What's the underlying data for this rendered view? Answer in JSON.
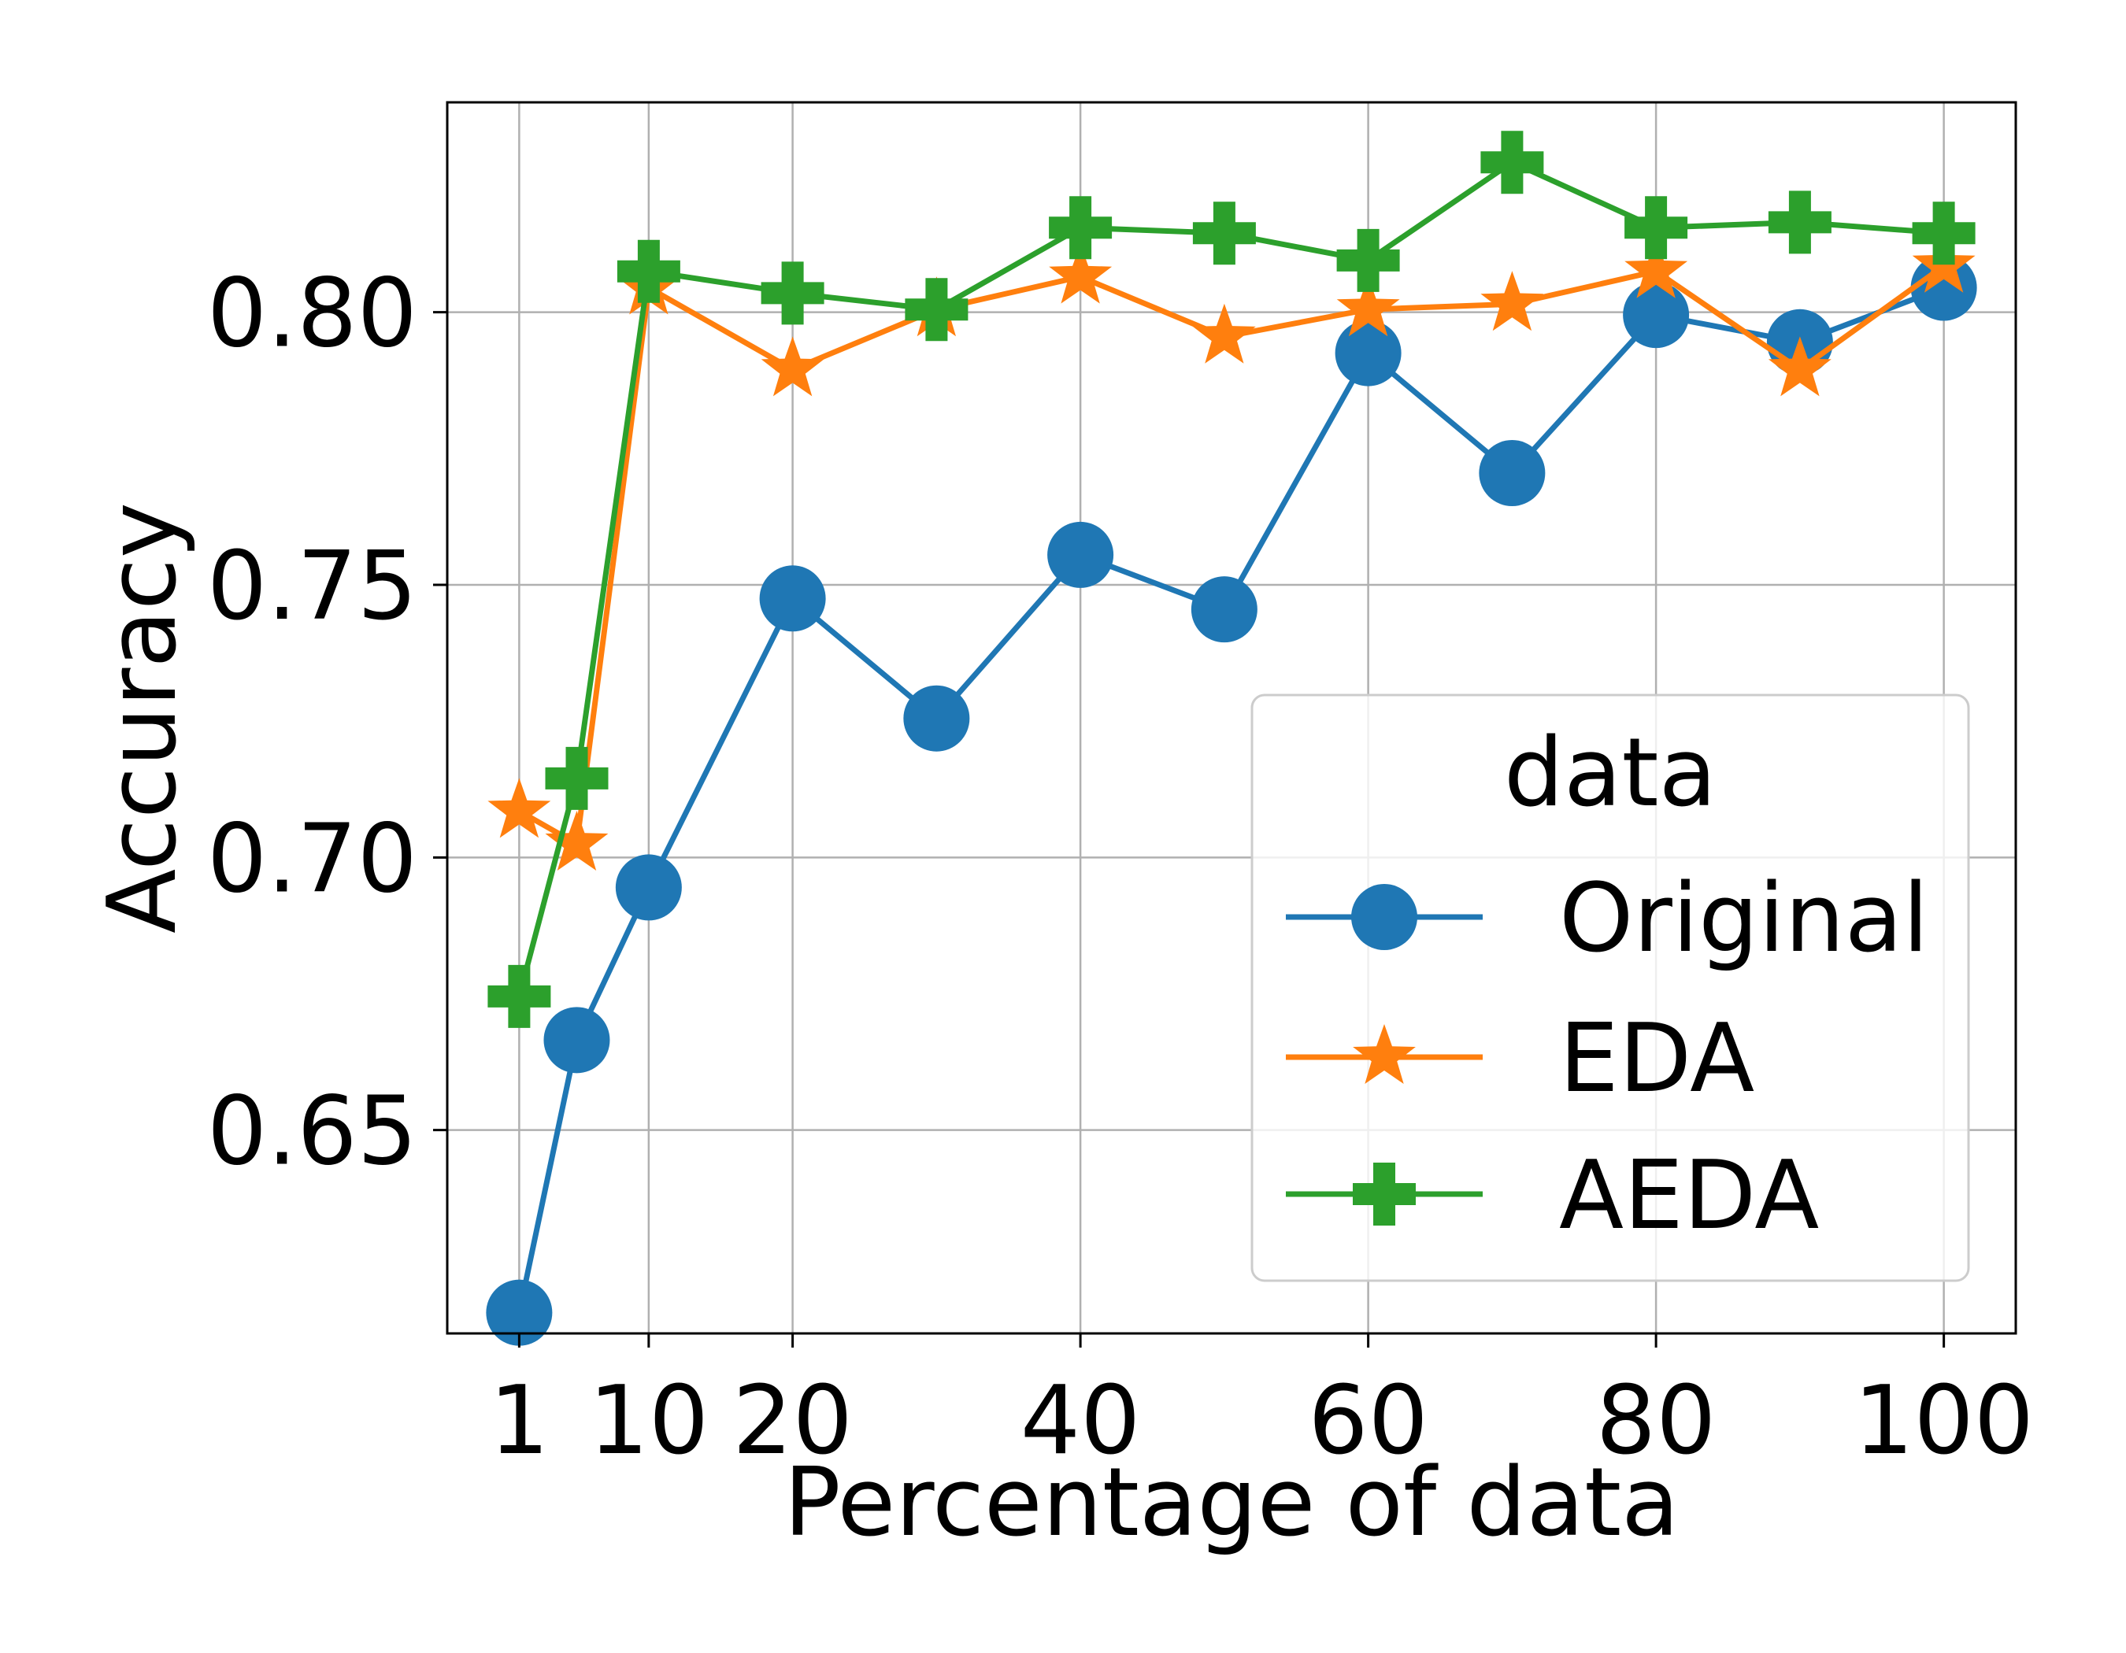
{
  "chart_data": {
    "type": "line",
    "title": "",
    "xlabel": "Percentage of data",
    "ylabel": "Accuracy",
    "x": [
      1,
      5,
      10,
      20,
      30,
      40,
      50,
      60,
      70,
      80,
      90,
      100
    ],
    "xticks": [
      1,
      10,
      20,
      40,
      60,
      80,
      100
    ],
    "xtick_labels": [
      "1",
      "10",
      "20",
      "40",
      "60",
      "80",
      "100"
    ],
    "yticks": [
      0.65,
      0.7,
      0.75,
      0.8
    ],
    "ytick_labels": [
      "0.65",
      "0.70",
      "0.75",
      "0.80"
    ],
    "xlim": [
      -4,
      105
    ],
    "ylim": [
      0.6127,
      0.8385
    ],
    "grid": true,
    "legend": {
      "title": "data",
      "position": "lower right"
    },
    "series": [
      {
        "name": "Original",
        "color": "#1f77b4",
        "marker": "circle",
        "values": [
          0.6165,
          0.6665,
          0.6945,
          0.7475,
          0.7255,
          0.7555,
          0.7455,
          0.7925,
          0.7705,
          0.7995,
          0.7945,
          0.8045
        ]
      },
      {
        "name": "EDA",
        "color": "#ff7f0e",
        "marker": "star",
        "values": [
          0.7085,
          0.7025,
          0.8045,
          0.7895,
          0.8005,
          0.8065,
          0.7955,
          0.8005,
          0.8015,
          0.8075,
          0.7895,
          0.8085
        ]
      },
      {
        "name": "AEDA",
        "color": "#2ca02c",
        "marker": "plus",
        "values": [
          0.6745,
          0.7145,
          0.8075,
          0.8035,
          0.8005,
          0.8155,
          0.8145,
          0.8095,
          0.8275,
          0.8155,
          0.8165,
          0.8145
        ]
      }
    ]
  }
}
